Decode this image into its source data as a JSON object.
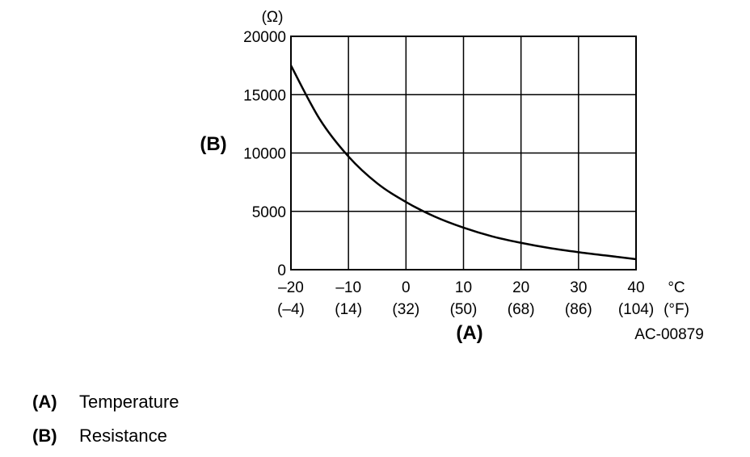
{
  "chart_data": {
    "type": "line",
    "y_unit_label": "(Ω)",
    "ylabel": "(B)",
    "xlabel": "(A)",
    "x_unit_label_c": "°C",
    "x_unit_label_f": "(°F)",
    "ylim": [
      0,
      20000
    ],
    "xlim": [
      -20,
      40
    ],
    "y_ticks": [
      0,
      5000,
      10000,
      15000,
      20000
    ],
    "y_tick_labels": [
      "0",
      "5000",
      "10000",
      "15000",
      "20000"
    ],
    "x_ticks": [
      -20,
      -10,
      0,
      10,
      20,
      30,
      40
    ],
    "x_tick_labels_c": [
      "–20",
      "–10",
      "0",
      "10",
      "20",
      "30",
      "40"
    ],
    "x_tick_labels_f": [
      "(–4)",
      "(14)",
      "(32)",
      "(50)",
      "(68)",
      "(86)",
      "(104)"
    ],
    "grid": true,
    "series": [
      {
        "x": [
          -20,
          -15,
          -10,
          -5,
          0,
          5,
          10,
          15,
          20,
          25,
          30,
          35,
          40
        ],
        "values": [
          17500,
          12900,
          9700,
          7400,
          5800,
          4550,
          3600,
          2850,
          2300,
          1850,
          1500,
          1200,
          900
        ]
      }
    ],
    "figure_code": "AC-00879"
  },
  "legend": {
    "items": [
      {
        "key": "(A)",
        "label": "Temperature"
      },
      {
        "key": "(B)",
        "label": "Resistance"
      }
    ]
  }
}
